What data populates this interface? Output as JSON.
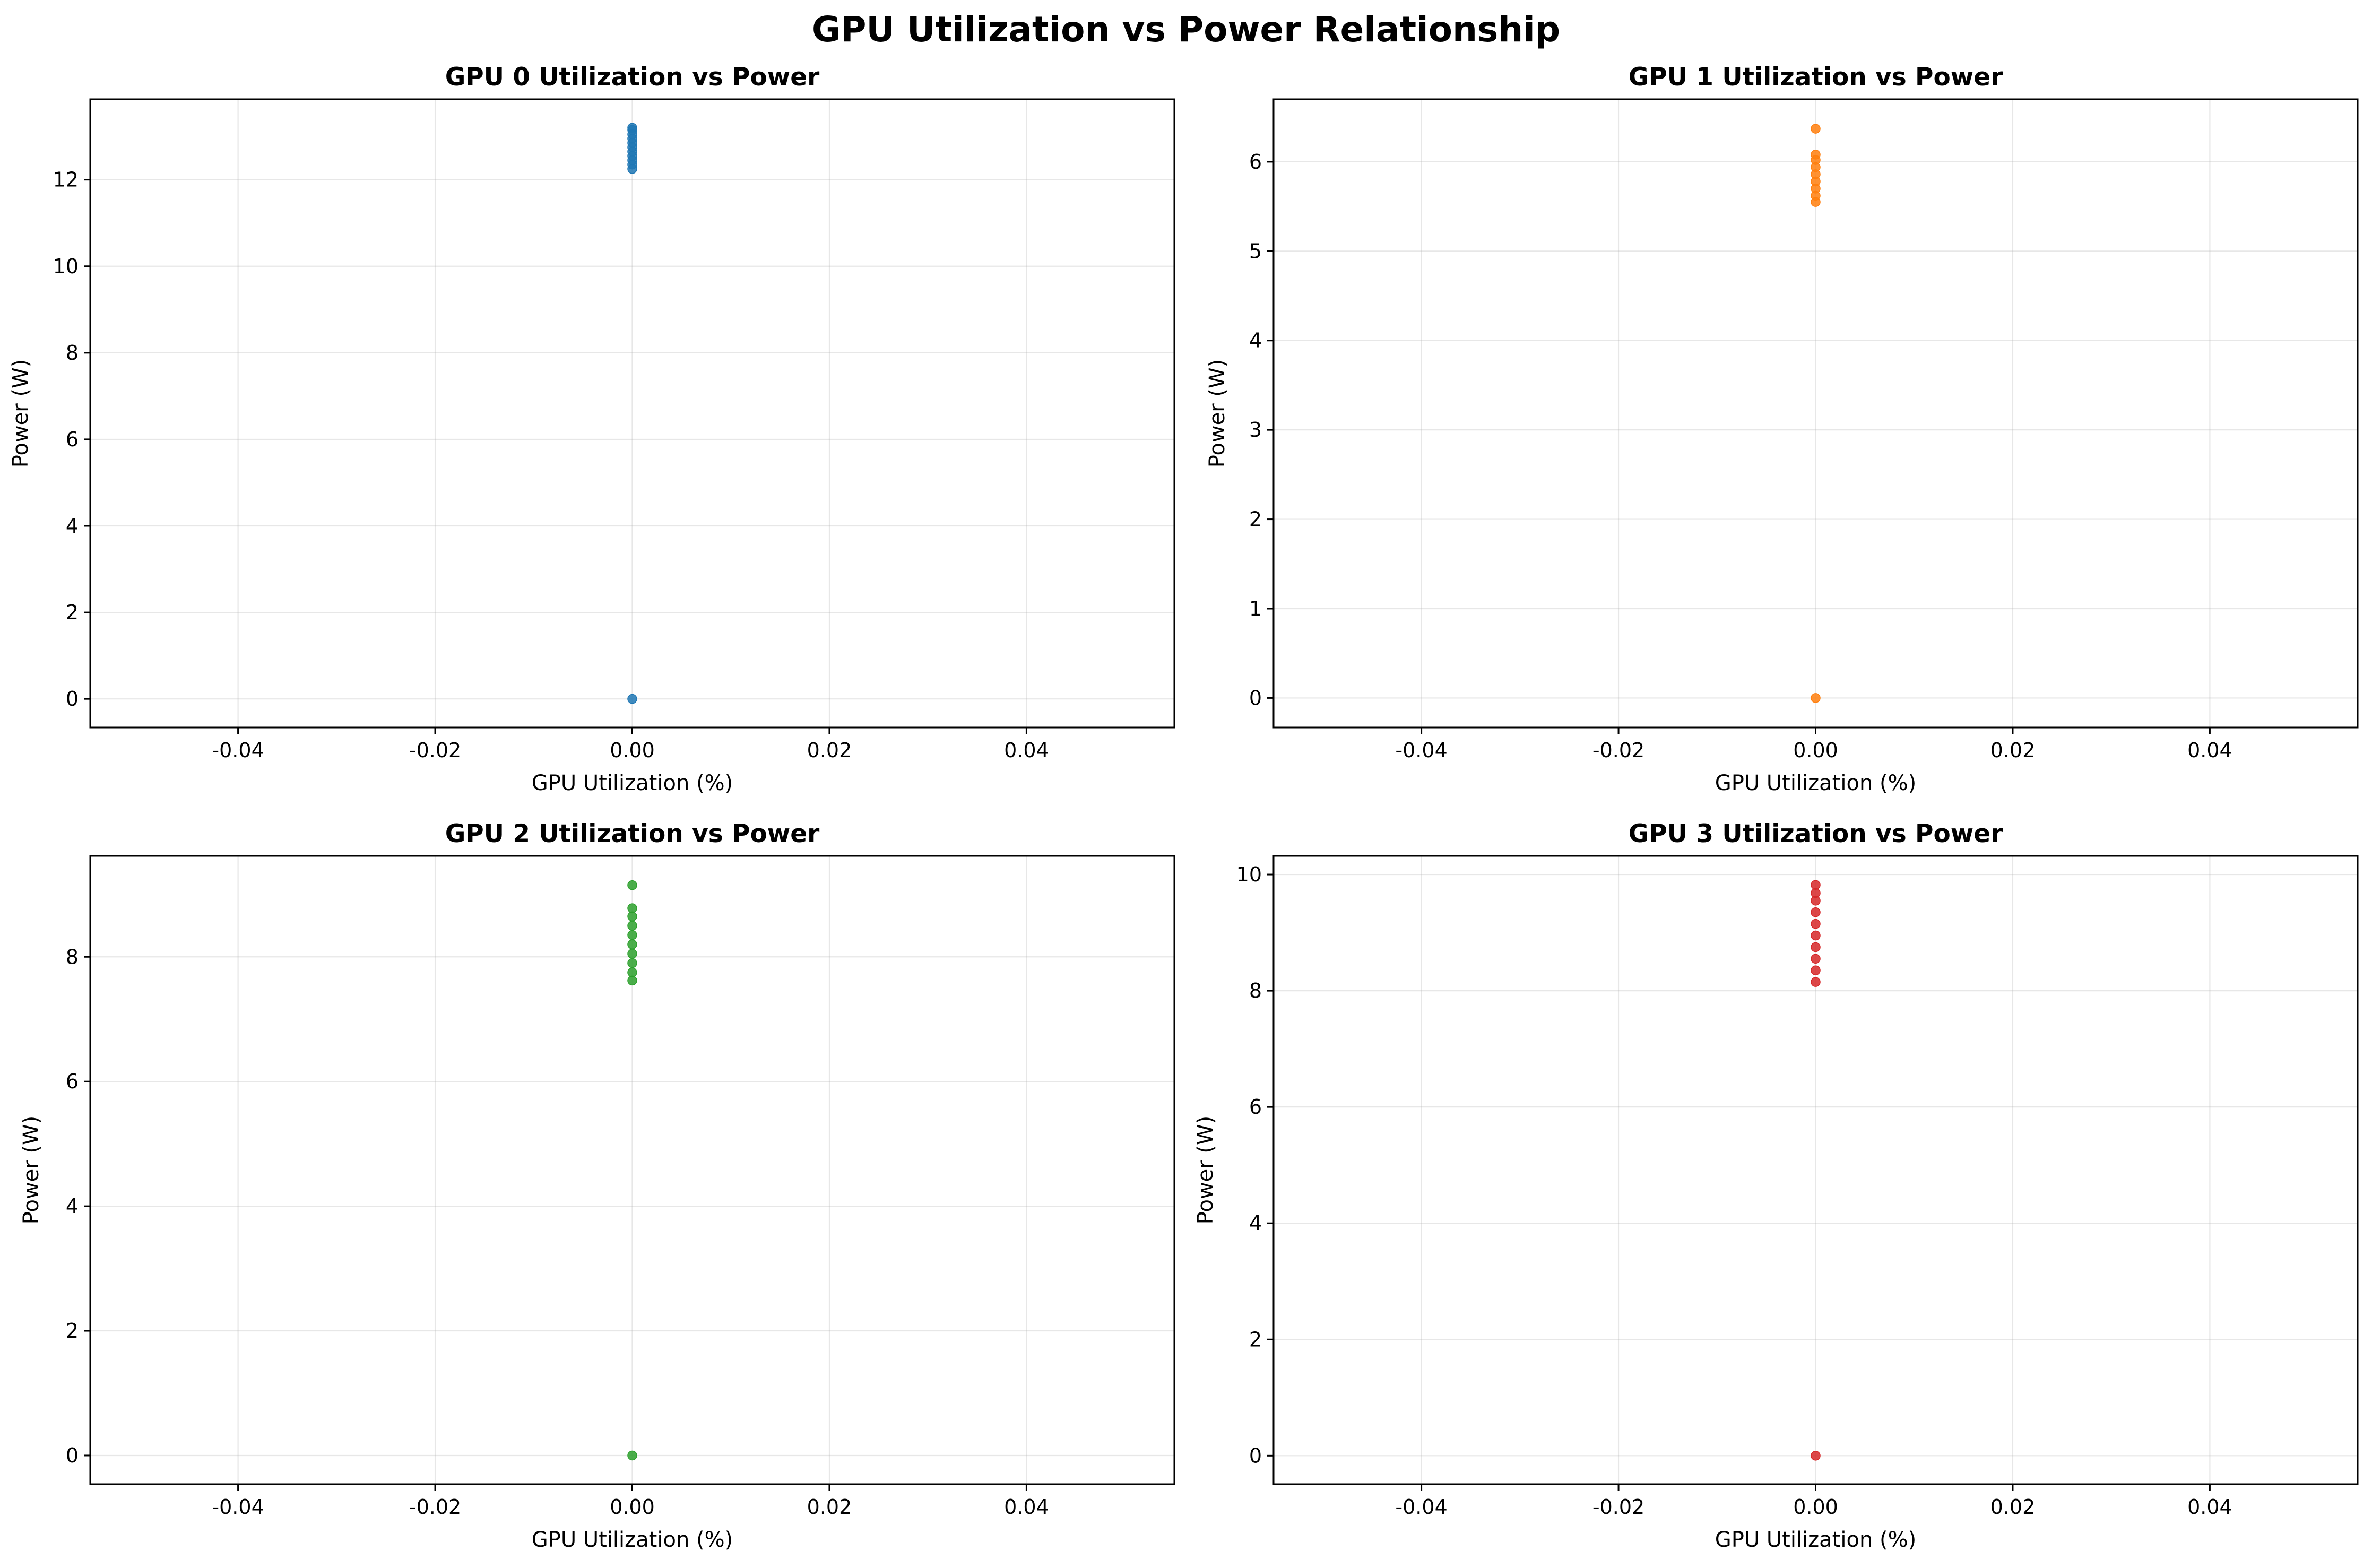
{
  "figure": {
    "title": "GPU Utilization vs Power Relationship"
  },
  "chart_data": [
    {
      "type": "scatter",
      "title": "GPU 0 Utilization vs Power",
      "xlabel": "GPU Utilization (%)",
      "ylabel": "Power (W)",
      "color": "#1f77b4",
      "xlim": [
        -0.055,
        0.055
      ],
      "ylim": [
        -0.66,
        13.86
      ],
      "xticks": [
        -0.04,
        -0.02,
        0.0,
        0.02,
        0.04
      ],
      "xtick_labels": [
        "-0.04",
        "-0.02",
        "0.00",
        "0.02",
        "0.04"
      ],
      "yticks": [
        0,
        2,
        4,
        6,
        8,
        10,
        12
      ],
      "ytick_labels": [
        "0",
        "2",
        "4",
        "6",
        "8",
        "10",
        "12"
      ],
      "grid": true,
      "points": [
        {
          "x": 0,
          "y": 0.0
        },
        {
          "x": 0,
          "y": 12.25
        },
        {
          "x": 0,
          "y": 12.35
        },
        {
          "x": 0,
          "y": 12.45
        },
        {
          "x": 0,
          "y": 12.55
        },
        {
          "x": 0,
          "y": 12.65
        },
        {
          "x": 0,
          "y": 12.75
        },
        {
          "x": 0,
          "y": 12.85
        },
        {
          "x": 0,
          "y": 12.95
        },
        {
          "x": 0,
          "y": 13.05
        },
        {
          "x": 0,
          "y": 13.15
        },
        {
          "x": 0,
          "y": 13.2
        }
      ]
    },
    {
      "type": "scatter",
      "title": "GPU 1 Utilization vs Power",
      "xlabel": "GPU Utilization (%)",
      "ylabel": "Power (W)",
      "color": "#ff7f0e",
      "xlim": [
        -0.055,
        0.055
      ],
      "ylim": [
        -0.33,
        6.7
      ],
      "xticks": [
        -0.04,
        -0.02,
        0.0,
        0.02,
        0.04
      ],
      "xtick_labels": [
        "-0.04",
        "-0.02",
        "0.00",
        "0.02",
        "0.04"
      ],
      "yticks": [
        0,
        1,
        2,
        3,
        4,
        5,
        6
      ],
      "ytick_labels": [
        "0",
        "1",
        "2",
        "3",
        "4",
        "5",
        "6"
      ],
      "grid": true,
      "points": [
        {
          "x": 0,
          "y": 0.0
        },
        {
          "x": 0,
          "y": 5.55
        },
        {
          "x": 0,
          "y": 5.62
        },
        {
          "x": 0,
          "y": 5.7
        },
        {
          "x": 0,
          "y": 5.78
        },
        {
          "x": 0,
          "y": 5.86
        },
        {
          "x": 0,
          "y": 5.94
        },
        {
          "x": 0,
          "y": 6.02
        },
        {
          "x": 0,
          "y": 6.08
        },
        {
          "x": 0,
          "y": 6.37
        }
      ]
    },
    {
      "type": "scatter",
      "title": "GPU 2 Utilization vs Power",
      "xlabel": "GPU Utilization (%)",
      "ylabel": "Power (W)",
      "color": "#2ca02c",
      "xlim": [
        -0.055,
        0.055
      ],
      "ylim": [
        -0.46,
        9.62
      ],
      "xticks": [
        -0.04,
        -0.02,
        0.0,
        0.02,
        0.04
      ],
      "xtick_labels": [
        "-0.04",
        "-0.02",
        "0.00",
        "0.02",
        "0.04"
      ],
      "yticks": [
        0,
        2,
        4,
        6,
        8
      ],
      "ytick_labels": [
        "0",
        "2",
        "4",
        "6",
        "8"
      ],
      "grid": true,
      "points": [
        {
          "x": 0,
          "y": 0.0
        },
        {
          "x": 0,
          "y": 7.62
        },
        {
          "x": 0,
          "y": 7.75
        },
        {
          "x": 0,
          "y": 7.9
        },
        {
          "x": 0,
          "y": 8.05
        },
        {
          "x": 0,
          "y": 8.2
        },
        {
          "x": 0,
          "y": 8.35
        },
        {
          "x": 0,
          "y": 8.5
        },
        {
          "x": 0,
          "y": 8.65
        },
        {
          "x": 0,
          "y": 8.78
        },
        {
          "x": 0,
          "y": 9.15
        }
      ]
    },
    {
      "type": "scatter",
      "title": "GPU 3 Utilization vs Power",
      "xlabel": "GPU Utilization (%)",
      "ylabel": "Power (W)",
      "color": "#d62728",
      "xlim": [
        -0.055,
        0.055
      ],
      "ylim": [
        -0.49,
        10.32
      ],
      "xticks": [
        -0.04,
        -0.02,
        0.0,
        0.02,
        0.04
      ],
      "xtick_labels": [
        "-0.04",
        "-0.02",
        "0.00",
        "0.02",
        "0.04"
      ],
      "yticks": [
        0,
        2,
        4,
        6,
        8,
        10
      ],
      "ytick_labels": [
        "0",
        "2",
        "4",
        "6",
        "8",
        "10"
      ],
      "grid": true,
      "points": [
        {
          "x": 0,
          "y": 0.0
        },
        {
          "x": 0,
          "y": 8.15
        },
        {
          "x": 0,
          "y": 8.35
        },
        {
          "x": 0,
          "y": 8.55
        },
        {
          "x": 0,
          "y": 8.75
        },
        {
          "x": 0,
          "y": 8.95
        },
        {
          "x": 0,
          "y": 9.15
        },
        {
          "x": 0,
          "y": 9.35
        },
        {
          "x": 0,
          "y": 9.55
        },
        {
          "x": 0,
          "y": 9.68
        },
        {
          "x": 0,
          "y": 9.82
        }
      ]
    }
  ]
}
